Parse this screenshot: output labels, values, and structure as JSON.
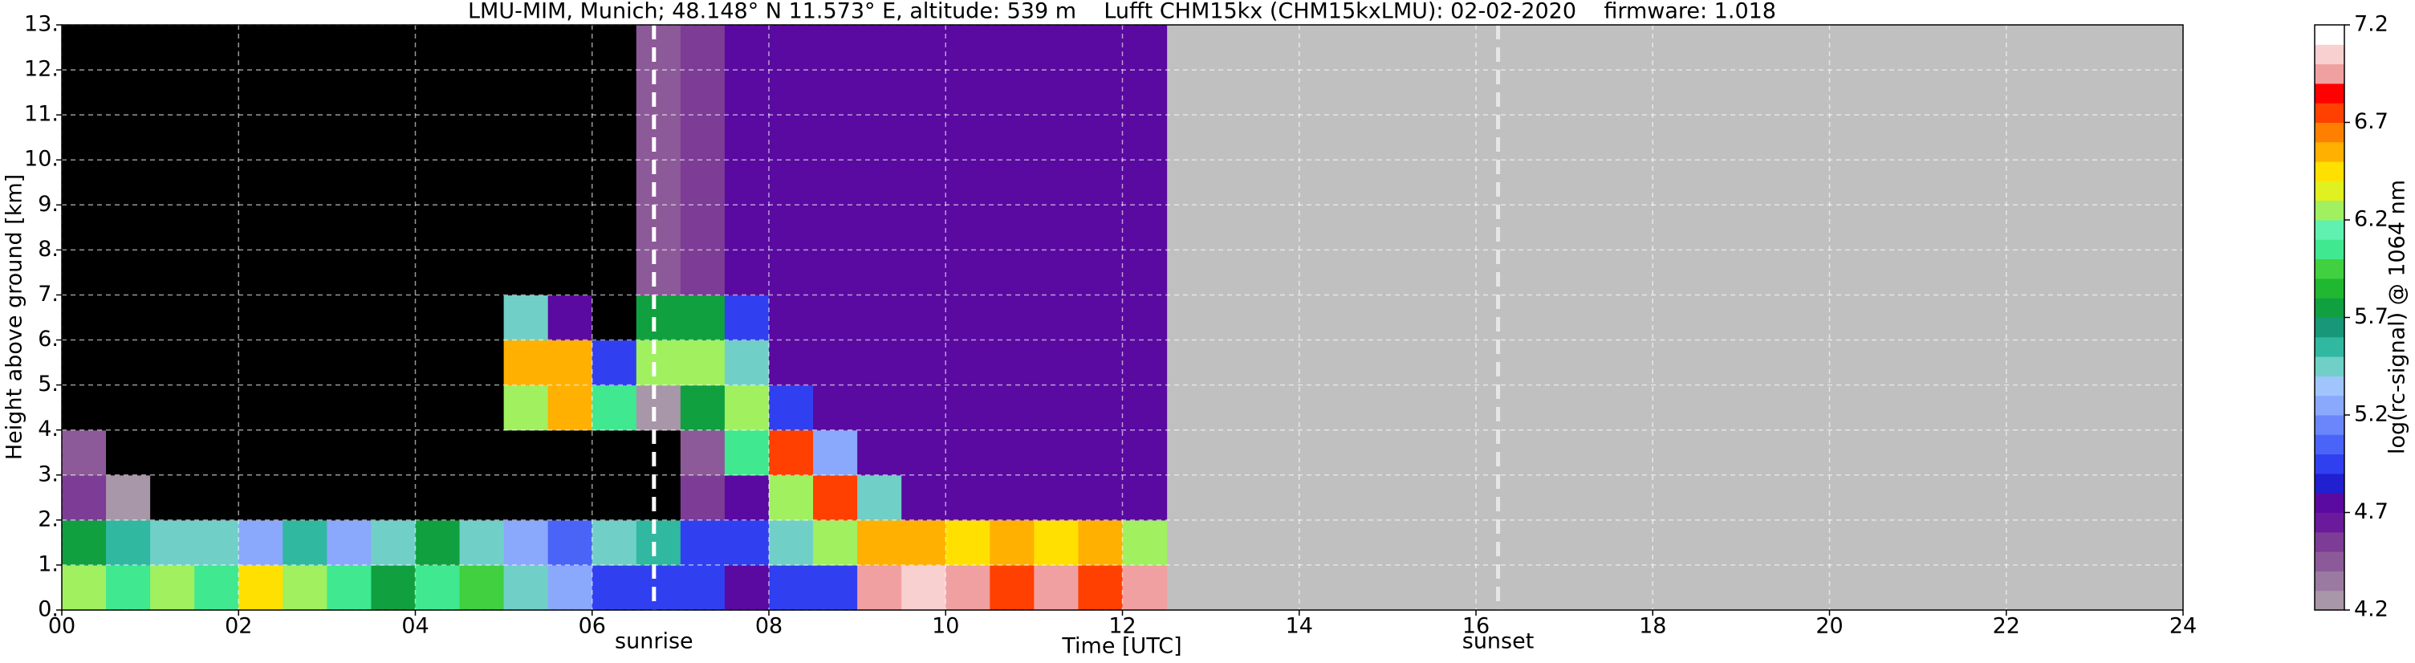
{
  "chart_data": {
    "type": "heatmap",
    "title": "LMU-MIM, Munich; 48.148° N 11.573° E, altitude: 539 m    Lufft CHM15kx (CHM15kxLMU): 02-02-2020    firmware: 1.018",
    "xlabel": "Time [UTC]",
    "ylabel": "Height above ground [km]",
    "xlim": [
      0,
      24
    ],
    "ylim": [
      0,
      13
    ],
    "xticks": [
      {
        "value": 0,
        "label": "00"
      },
      {
        "value": 2,
        "label": "02"
      },
      {
        "value": 4,
        "label": "04"
      },
      {
        "value": 6,
        "label": "06"
      },
      {
        "value": 8,
        "label": "08"
      },
      {
        "value": 10,
        "label": "10"
      },
      12,
      14,
      16,
      18,
      20,
      22,
      24
    ],
    "yticks": [
      {
        "value": 0,
        "label": "0."
      },
      {
        "value": 1,
        "label": "1."
      },
      {
        "value": 2,
        "label": "2."
      },
      {
        "value": 3,
        "label": "3."
      },
      {
        "value": 4,
        "label": "4."
      },
      {
        "value": 5,
        "label": "5."
      },
      {
        "value": 6,
        "label": "6."
      },
      {
        "value": 7,
        "label": "7."
      },
      {
        "value": 8,
        "label": "8."
      },
      {
        "value": 9,
        "label": "9."
      },
      {
        "value": 10,
        "label": "10."
      },
      {
        "value": 11,
        "label": "11."
      },
      {
        "value": 12,
        "label": "12."
      },
      {
        "value": 13,
        "label": "13."
      }
    ],
    "grid": true,
    "missing_color": "#c0c0c0",
    "under_color": "#000000",
    "xbins": [
      0,
      0.5,
      1,
      1.5,
      2,
      2.5,
      3,
      3.5,
      4,
      4.5,
      5,
      5.5,
      6,
      6.5,
      7,
      7.5,
      8,
      8.5,
      9,
      9.5,
      10,
      10.5,
      11,
      11.5,
      12,
      12.5
    ],
    "ybins": [
      0,
      1,
      2,
      3,
      4,
      5,
      6,
      7,
      8,
      9,
      10,
      11,
      12,
      13
    ],
    "z": [
      [
        6.2,
        6.0,
        6.3,
        6.1,
        6.4,
        6.2,
        6.0,
        5.8,
        6.1,
        5.9,
        5.4,
        5.2,
        5.0,
        5.0,
        4.9,
        4.8,
        5.0,
        4.9,
        7.0,
        7.1,
        6.9,
        6.8,
        6.9,
        6.8,
        6.9
      ],
      [
        5.8,
        5.6,
        5.4,
        5.5,
        5.3,
        5.6,
        5.2,
        5.5,
        5.7,
        5.4,
        5.3,
        5.1,
        5.4,
        5.6,
        5.0,
        4.9,
        5.4,
        6.2,
        6.6,
        6.5,
        6.4,
        6.5,
        6.4,
        6.5,
        6.3
      ],
      [
        4.6,
        4.3,
        4.0,
        4.1,
        4.0,
        4.0,
        4.0,
        4.1,
        4.0,
        4.0,
        4.0,
        4.0,
        4.0,
        4.0,
        4.6,
        4.7,
        6.3,
        6.8,
        5.4,
        4.8,
        4.8,
        4.8,
        4.8,
        4.8,
        4.8
      ],
      [
        4.4,
        4.1,
        4.0,
        4.0,
        4.0,
        4.0,
        4.0,
        4.0,
        4.0,
        4.0,
        4.0,
        4.0,
        4.0,
        4.0,
        4.5,
        6.0,
        6.8,
        5.2,
        4.8,
        4.8,
        4.8,
        4.8,
        4.8,
        4.8,
        4.8
      ],
      [
        4.0,
        4.0,
        4.0,
        4.0,
        4.0,
        4.0,
        4.0,
        4.0,
        4.0,
        4.0,
        6.2,
        6.5,
        6.1,
        4.3,
        5.8,
        6.2,
        5.0,
        4.8,
        4.8,
        4.8,
        4.8,
        4.8,
        4.8,
        4.8,
        4.8
      ],
      [
        4.0,
        4.0,
        4.0,
        4.0,
        4.0,
        4.0,
        4.0,
        4.0,
        4.0,
        4.0,
        6.6,
        6.6,
        5.0,
        6.2,
        6.2,
        5.4,
        4.8,
        4.7,
        4.7,
        4.7,
        4.7,
        4.7,
        4.7,
        4.7,
        4.7
      ],
      [
        4.0,
        4.0,
        4.0,
        4.0,
        4.0,
        4.0,
        4.0,
        4.0,
        4.0,
        4.0,
        5.4,
        4.8,
        4.0,
        5.8,
        5.8,
        4.9,
        4.7,
        4.7,
        4.7,
        4.7,
        4.7,
        4.7,
        4.7,
        4.7,
        4.7
      ],
      [
        4.0,
        4.0,
        4.0,
        4.0,
        4.0,
        4.0,
        4.0,
        4.0,
        4.0,
        4.0,
        4.0,
        4.0,
        4.0,
        4.4,
        4.6,
        4.7,
        4.7,
        4.7,
        4.7,
        4.7,
        4.7,
        4.7,
        4.7,
        4.7,
        4.7
      ],
      [
        4.0,
        4.0,
        4.0,
        4.0,
        4.0,
        4.0,
        4.0,
        4.0,
        4.0,
        4.0,
        4.0,
        4.0,
        4.0,
        4.4,
        4.6,
        4.7,
        4.7,
        4.7,
        4.7,
        4.7,
        4.7,
        4.7,
        4.7,
        4.7,
        4.7
      ],
      [
        4.0,
        4.0,
        4.0,
        4.0,
        4.0,
        4.0,
        4.0,
        4.0,
        4.0,
        4.0,
        4.0,
        4.0,
        4.0,
        4.4,
        4.6,
        4.7,
        4.7,
        4.7,
        4.7,
        4.7,
        4.7,
        4.7,
        4.7,
        4.7,
        4.7
      ],
      [
        4.0,
        4.0,
        4.0,
        4.0,
        4.0,
        4.0,
        4.0,
        4.0,
        4.0,
        4.0,
        4.0,
        4.0,
        4.0,
        4.4,
        4.6,
        4.7,
        4.7,
        4.7,
        4.7,
        4.7,
        4.7,
        4.7,
        4.7,
        4.7,
        4.7
      ],
      [
        4.0,
        4.0,
        4.0,
        4.0,
        4.0,
        4.0,
        4.0,
        4.0,
        4.0,
        4.0,
        4.0,
        4.0,
        4.0,
        4.4,
        4.6,
        4.7,
        4.7,
        4.7,
        4.7,
        4.7,
        4.7,
        4.7,
        4.7,
        4.7,
        4.7
      ],
      [
        4.0,
        4.0,
        4.0,
        4.0,
        4.0,
        4.0,
        4.0,
        4.0,
        4.0,
        4.0,
        4.0,
        4.0,
        4.0,
        4.4,
        4.6,
        4.7,
        4.7,
        4.7,
        4.7,
        4.7,
        4.7,
        4.7,
        4.7,
        4.7,
        4.7
      ]
    ],
    "annotations": [
      {
        "label": "sunrise",
        "x": 6.7
      },
      {
        "label": "sunset",
        "x": 16.25
      }
    ],
    "colorbar": {
      "label": "log(rc-signal) @ 1064 nm",
      "lim": [
        4.2,
        7.2
      ],
      "ticks": [
        4.2,
        4.7,
        5.2,
        5.7,
        6.2,
        6.7,
        7.2
      ],
      "colors": [
        "#a897a8",
        "#9a7aa0",
        "#8c5a98",
        "#7d3c96",
        "#6a1a9a",
        "#5a0aa0",
        "#2020d0",
        "#3040f0",
        "#4a64f8",
        "#6a86fa",
        "#8aa8fc",
        "#a0c4fc",
        "#70d0c8",
        "#30b8a0",
        "#189878",
        "#10a040",
        "#20b830",
        "#40d040",
        "#40e890",
        "#60f0b0",
        "#a0f060",
        "#e0f020",
        "#ffe000",
        "#ffb000",
        "#ff8000",
        "#ff4000",
        "#ff0000",
        "#f0a0a0",
        "#f8d0d0",
        "#ffffff"
      ]
    }
  }
}
